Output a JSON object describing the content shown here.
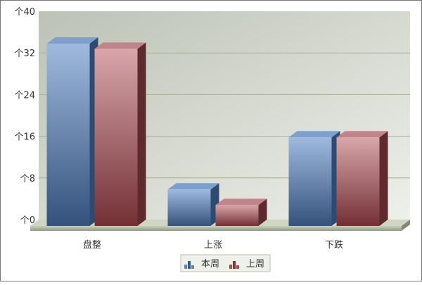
{
  "chart_data": {
    "type": "bar",
    "categories": [
      "盘整",
      "上涨",
      "下跌"
    ],
    "series": [
      {
        "name": "本周",
        "values": [
          35,
          7,
          17
        ],
        "color": "#4a6fa0"
      },
      {
        "name": "上周",
        "values": [
          34,
          4,
          17
        ],
        "color": "#9a4a50"
      }
    ],
    "ylim": [
      0,
      40
    ],
    "yticks": [
      0,
      8,
      16,
      24,
      32,
      40
    ],
    "ytick_prefix": "个",
    "grid": true,
    "legend": "bottom",
    "three_d": true
  }
}
